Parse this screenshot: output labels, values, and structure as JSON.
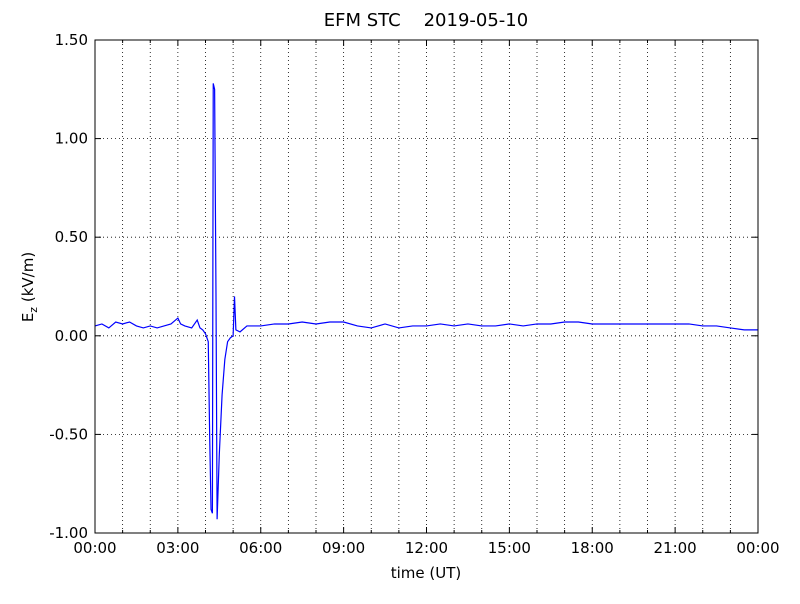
{
  "chart_data": {
    "type": "line",
    "title": "EFM STC    2019-05-10",
    "xlabel": "time (UT)",
    "ylabel_main": "E",
    "ylabel_sub": "z",
    "ylabel_unit": " (kV/m)",
    "xlim": [
      0,
      24
    ],
    "ylim": [
      -1.0,
      1.5
    ],
    "xticks": [
      {
        "value": 0,
        "label": "00:00"
      },
      {
        "value": 3,
        "label": "03:00"
      },
      {
        "value": 6,
        "label": "06:00"
      },
      {
        "value": 9,
        "label": "09:00"
      },
      {
        "value": 12,
        "label": "12:00"
      },
      {
        "value": 15,
        "label": "15:00"
      },
      {
        "value": 18,
        "label": "18:00"
      },
      {
        "value": 21,
        "label": "21:00"
      },
      {
        "value": 24,
        "label": "00:00"
      }
    ],
    "xminorticks": [
      1,
      2,
      4,
      5,
      7,
      8,
      10,
      11,
      13,
      14,
      16,
      17,
      19,
      20,
      22,
      23
    ],
    "yticks": [
      {
        "value": 1.5,
        "label": "1.50"
      },
      {
        "value": 1.0,
        "label": "1.00"
      },
      {
        "value": 0.5,
        "label": "0.50"
      },
      {
        "value": 0,
        "label": "0.00"
      },
      {
        "value": -0.5,
        "label": "-0.50"
      },
      {
        "value": -1.0,
        "label": "-1.00"
      }
    ],
    "grid": true,
    "series": [
      {
        "color": "#0000ff",
        "x": [
          0,
          0.25,
          0.5,
          0.75,
          1,
          1.25,
          1.5,
          1.75,
          2,
          2.25,
          2.5,
          2.75,
          3,
          3.1,
          3.25,
          3.5,
          3.7,
          3.8,
          3.9,
          4.0,
          4.1,
          4.15,
          4.2,
          4.25,
          4.28,
          4.33,
          4.38,
          4.42,
          4.5,
          4.6,
          4.7,
          4.8,
          4.9,
          5.0,
          5.05,
          5.1,
          5.25,
          5.5,
          5.75,
          6,
          6.5,
          7,
          7.5,
          8,
          8.5,
          9,
          9.5,
          10,
          10.5,
          11,
          11.5,
          12,
          12.5,
          13,
          13.5,
          14,
          14.5,
          15,
          15.5,
          16,
          16.5,
          17,
          17.5,
          18,
          18.5,
          19,
          19.5,
          20,
          20.5,
          21,
          21.5,
          22,
          22.5,
          23,
          23.5,
          24
        ],
        "values": [
          0.05,
          0.06,
          0.04,
          0.07,
          0.06,
          0.07,
          0.05,
          0.04,
          0.05,
          0.04,
          0.05,
          0.06,
          0.09,
          0.06,
          0.05,
          0.04,
          0.08,
          0.04,
          0.03,
          0.01,
          -0.03,
          -0.5,
          -0.88,
          -0.9,
          1.28,
          1.25,
          0.2,
          -0.93,
          -0.6,
          -0.3,
          -0.12,
          -0.03,
          -0.01,
          0.0,
          0.2,
          0.03,
          0.02,
          0.05,
          0.05,
          0.05,
          0.06,
          0.06,
          0.07,
          0.06,
          0.07,
          0.07,
          0.05,
          0.04,
          0.06,
          0.04,
          0.05,
          0.05,
          0.06,
          0.05,
          0.06,
          0.05,
          0.05,
          0.06,
          0.05,
          0.06,
          0.06,
          0.07,
          0.07,
          0.06,
          0.06,
          0.06,
          0.06,
          0.06,
          0.06,
          0.06,
          0.06,
          0.05,
          0.05,
          0.04,
          0.03,
          0.03
        ]
      }
    ]
  }
}
